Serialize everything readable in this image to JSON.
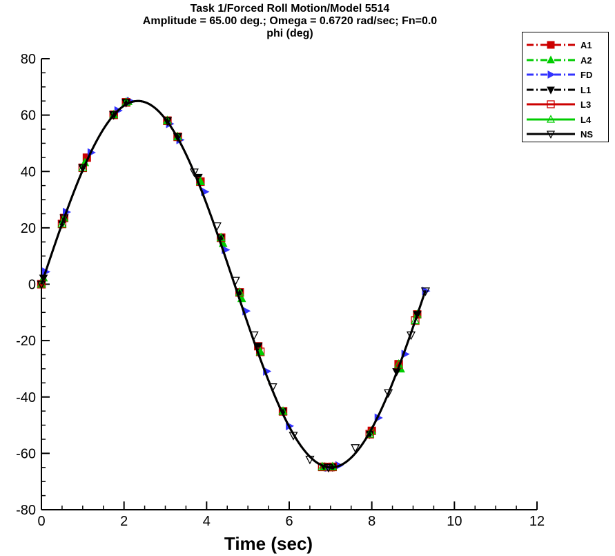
{
  "chart_data": {
    "type": "line",
    "title_lines": [
      "Task 1/Forced Roll Motion/Model 5514",
      "Amplitude = 65.00 deg.; Omega =  0.6720 rad/sec; Fn=0.0",
      "phi (deg)"
    ],
    "xlabel": "Time (sec)",
    "ylabel": "",
    "xlim": [
      0,
      12
    ],
    "ylim": [
      -80,
      80
    ],
    "x_ticks": [
      0,
      2,
      4,
      6,
      8,
      10,
      12
    ],
    "x_tick_labels": [
      "0",
      "2",
      "4",
      "6",
      "8",
      "10",
      "12"
    ],
    "y_ticks": [
      -80,
      -60,
      -40,
      -20,
      0,
      20,
      40,
      60,
      80
    ],
    "y_tick_labels": [
      "-80",
      "-60",
      "-40",
      "-20",
      "0",
      "20",
      "40",
      "60",
      "80"
    ],
    "grid": false,
    "legend_position": "top-right outside",
    "series": [
      {
        "name": "A1",
        "color": "#cc0000",
        "dash": "dashdot",
        "marker": "square-filled",
        "x": [
          0.0,
          0.55,
          1.1,
          1.75,
          2.05,
          3.05,
          3.3,
          3.85,
          4.35,
          4.8,
          5.25,
          5.85,
          6.85,
          7.0,
          8.0,
          8.65,
          9.1
        ],
        "y": [
          0.0,
          23.5,
          44.9,
          60.1,
          64.5,
          58.0,
          52.3,
          36.4,
          16.5,
          -2.9,
          -22.0,
          -45.1,
          -64.8,
          -64.9,
          -52.0,
          -28.4,
          -10.7
        ]
      },
      {
        "name": "A2",
        "color": "#00cc00",
        "dash": "dashdot",
        "marker": "triangle-up-filled",
        "x": [
          0.05,
          0.55,
          1.05,
          1.75,
          2.1,
          3.05,
          3.3,
          3.85,
          4.4,
          4.85,
          5.3,
          5.85,
          6.85,
          7.05,
          8.0,
          8.7,
          9.1
        ],
        "y": [
          2.2,
          23.5,
          43.1,
          60.1,
          64.8,
          58.0,
          52.3,
          36.4,
          14.4,
          -5.1,
          -24.0,
          -45.1,
          -64.8,
          -64.8,
          -52.0,
          -30.1,
          -10.7
        ]
      },
      {
        "name": "FD",
        "color": "#3333ff",
        "dash": "dashdot",
        "marker": "triangle-right-filled",
        "x": [
          0.1,
          0.6,
          1.2,
          1.85,
          2.15,
          3.1,
          3.35,
          3.95,
          4.45,
          4.95,
          5.45,
          6.0,
          6.95,
          7.2,
          8.15,
          8.8,
          9.3
        ],
        "y": [
          4.4,
          25.6,
          46.7,
          61.6,
          64.9,
          56.9,
          51.2,
          32.8,
          12.2,
          -9.5,
          -30.9,
          -50.3,
          -65.0,
          -64.3,
          -47.4,
          -24.8,
          -2.4
        ]
      },
      {
        "name": "L1",
        "color": "#000000",
        "dash": "dashdot",
        "marker": "triangle-down-filled",
        "x": [
          0.05,
          0.5,
          1.0,
          1.75,
          2.05,
          3.05,
          3.3,
          3.8,
          4.35,
          4.8,
          5.25,
          5.85,
          6.85,
          7.05,
          7.95,
          8.6,
          9.1
        ],
        "y": [
          2.2,
          21.4,
          41.3,
          60.1,
          64.5,
          58.0,
          52.3,
          37.9,
          16.5,
          -2.9,
          -22.0,
          -45.1,
          -64.8,
          -64.8,
          -53.2,
          -31.0,
          -10.7
        ]
      },
      {
        "name": "L3",
        "color": "#cc0000",
        "dash": "solid",
        "marker": "square-open",
        "x": [
          0.0,
          0.5,
          1.0,
          1.75,
          2.05,
          3.05,
          3.3,
          3.85,
          4.35,
          4.8,
          5.3,
          5.85,
          6.8,
          7.05,
          7.95,
          8.65,
          9.05
        ],
        "y": [
          0.0,
          21.4,
          41.3,
          60.1,
          64.5,
          58.0,
          52.3,
          36.4,
          16.5,
          -2.9,
          -24.0,
          -45.1,
          -64.8,
          -64.8,
          -53.2,
          -28.4,
          -12.9
        ]
      },
      {
        "name": "L4",
        "color": "#00cc00",
        "dash": "solid",
        "marker": "triangle-up-open",
        "x": [
          0.0,
          0.5,
          1.0,
          1.75,
          2.05,
          3.05,
          3.3,
          3.85,
          4.35,
          4.8,
          5.3,
          5.85,
          6.8,
          7.05,
          7.95,
          8.65,
          9.05
        ],
        "y": [
          0.0,
          21.4,
          41.3,
          60.1,
          64.5,
          58.0,
          52.3,
          36.4,
          16.5,
          -2.9,
          -24.0,
          -45.1,
          -64.8,
          -64.8,
          -53.2,
          -28.4,
          -12.9
        ]
      },
      {
        "name": "NS",
        "color": "#000000",
        "dash": "solid",
        "marker": "triangle-down-open",
        "x": [
          0.0,
          0.55,
          1.0,
          1.75,
          2.05,
          3.05,
          3.3,
          3.7,
          4.25,
          4.7,
          5.15,
          5.6,
          6.1,
          6.5,
          6.95,
          7.6,
          8.4,
          8.95,
          9.3
        ],
        "y": [
          0.0,
          23.5,
          41.3,
          60.1,
          64.5,
          58.0,
          52.3,
          39.8,
          20.7,
          1.4,
          -18.0,
          -36.4,
          -53.6,
          -62.1,
          -65.0,
          -58.0,
          -38.5,
          -18.0,
          -2.4
        ]
      }
    ]
  },
  "legend": {
    "items": [
      {
        "label": "A1",
        "color": "#cc0000",
        "dash": "dashdot",
        "marker": "square-filled"
      },
      {
        "label": "A2",
        "color": "#00cc00",
        "dash": "dashdot",
        "marker": "triangle-up-filled"
      },
      {
        "label": "FD",
        "color": "#3333ff",
        "dash": "dashdot",
        "marker": "triangle-right-filled"
      },
      {
        "label": "L1",
        "color": "#000000",
        "dash": "dashdot",
        "marker": "triangle-down-filled"
      },
      {
        "label": "L3",
        "color": "#cc0000",
        "dash": "solid",
        "marker": "square-open"
      },
      {
        "label": "L4",
        "color": "#00cc00",
        "dash": "solid",
        "marker": "triangle-up-open"
      },
      {
        "label": "NS",
        "color": "#000000",
        "dash": "solid",
        "marker": "triangle-down-open"
      }
    ]
  }
}
